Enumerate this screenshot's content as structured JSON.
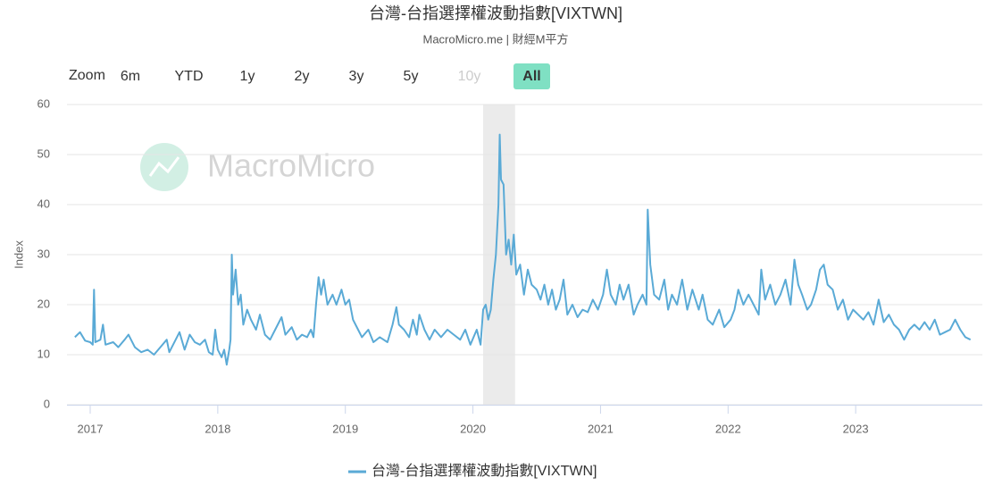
{
  "chart_data": {
    "type": "line",
    "title": "台灣-台指選擇權波動指數[VIXTWN]",
    "subtitle": "MacroMicro.me | 財經M平方",
    "y_label": "Index",
    "watermark": "MacroMicro",
    "range_selector": {
      "label": "Zoom",
      "buttons": [
        "6m",
        "YTD",
        "1y",
        "2y",
        "3y",
        "5y",
        "10y",
        "All"
      ],
      "selected": 7,
      "disabled": 6
    },
    "xlim": [
      2016.818,
      2023.993
    ],
    "xticks": [
      2017,
      2018,
      2019,
      2020,
      2021,
      2022,
      2023
    ],
    "ylim": [
      0,
      60
    ],
    "yticks": [
      0,
      10,
      20,
      30,
      40,
      50,
      60
    ],
    "grid": true,
    "highlight_band": [
      2020.08,
      2020.33
    ],
    "x": [
      2016.88,
      2016.92,
      2016.96,
      2017.0,
      2017.02,
      2017.03,
      2017.04,
      2017.08,
      2017.1,
      2017.12,
      2017.18,
      2017.22,
      2017.27,
      2017.3,
      2017.35,
      2017.4,
      2017.45,
      2017.5,
      2017.55,
      2017.6,
      2017.62,
      2017.7,
      2017.74,
      2017.78,
      2017.82,
      2017.86,
      2017.9,
      2017.93,
      2017.96,
      2017.98,
      2018.0,
      2018.03,
      2018.05,
      2018.07,
      2018.09,
      2018.1,
      2018.11,
      2018.12,
      2018.14,
      2018.16,
      2018.18,
      2018.2,
      2018.23,
      2018.26,
      2018.3,
      2018.33,
      2018.37,
      2018.41,
      2018.45,
      2018.5,
      2018.53,
      2018.58,
      2018.62,
      2018.66,
      2018.7,
      2018.73,
      2018.75,
      2018.77,
      2018.79,
      2018.81,
      2018.83,
      2018.86,
      2018.9,
      2018.93,
      2018.97,
      2019.0,
      2019.03,
      2019.06,
      2019.1,
      2019.13,
      2019.18,
      2019.22,
      2019.27,
      2019.33,
      2019.37,
      2019.4,
      2019.42,
      2019.46,
      2019.5,
      2019.53,
      2019.56,
      2019.58,
      2019.62,
      2019.66,
      2019.7,
      2019.75,
      2019.8,
      2019.85,
      2019.9,
      2019.94,
      2019.98,
      2020.03,
      2020.06,
      2020.08,
      2020.1,
      2020.12,
      2020.14,
      2020.16,
      2020.18,
      2020.2,
      2020.21,
      2020.22,
      2020.24,
      2020.26,
      2020.28,
      2020.3,
      2020.32,
      2020.34,
      2020.37,
      2020.4,
      2020.43,
      2020.46,
      2020.5,
      2020.53,
      2020.56,
      2020.59,
      2020.62,
      2020.65,
      2020.68,
      2020.71,
      2020.74,
      2020.78,
      2020.82,
      2020.86,
      2020.9,
      2020.94,
      2020.98,
      2021.02,
      2021.05,
      2021.08,
      2021.12,
      2021.15,
      2021.18,
      2021.22,
      2021.26,
      2021.29,
      2021.33,
      2021.36,
      2021.37,
      2021.39,
      2021.42,
      2021.46,
      2021.5,
      2021.53,
      2021.56,
      2021.6,
      2021.64,
      2021.68,
      2021.72,
      2021.77,
      2021.8,
      2021.84,
      2021.88,
      2021.93,
      2021.97,
      2022.02,
      2022.05,
      2022.08,
      2022.12,
      2022.16,
      2022.2,
      2022.24,
      2022.26,
      2022.29,
      2022.33,
      2022.37,
      2022.41,
      2022.45,
      2022.49,
      2022.52,
      2022.55,
      2022.58,
      2022.62,
      2022.65,
      2022.69,
      2022.72,
      2022.75,
      2022.78,
      2022.82,
      2022.86,
      2022.9,
      2022.94,
      2022.98,
      2023.02,
      2023.06,
      2023.1,
      2023.14,
      2023.18,
      2023.22,
      2023.26,
      2023.3,
      2023.34,
      2023.38,
      2023.42,
      2023.46,
      2023.5,
      2023.54,
      2023.58,
      2023.62,
      2023.66,
      2023.7,
      2023.74,
      2023.78,
      2023.82,
      2023.86,
      2023.9
    ],
    "series": [
      {
        "name": "台灣-台指選擇權波動指數[VIXTWN]",
        "color": "#5aaad6",
        "values": [
          13.5,
          14.5,
          12.8,
          12.5,
          12,
          23,
          12.5,
          13,
          16,
          12,
          12.5,
          11.5,
          13,
          14,
          11.5,
          10.5,
          11,
          10,
          11.5,
          13,
          10.5,
          14.5,
          11,
          14,
          12.5,
          12,
          13,
          10.5,
          10,
          15,
          11,
          9.5,
          11,
          8,
          11,
          13,
          30,
          22,
          27,
          20,
          22,
          16,
          19,
          17,
          15,
          18,
          14,
          13,
          15,
          17.5,
          14,
          15.5,
          13,
          14,
          13.5,
          15,
          13.5,
          20,
          25.5,
          22,
          25,
          20,
          22,
          20,
          23,
          20,
          21,
          17,
          15,
          13.5,
          15,
          12.5,
          13.5,
          12.5,
          16,
          19.5,
          16,
          15,
          13.5,
          17,
          14,
          18,
          15,
          13,
          15,
          13.5,
          15,
          14,
          13,
          15,
          12,
          15,
          12,
          19,
          20,
          17,
          19,
          25,
          30,
          40,
          54,
          45,
          44,
          30,
          33,
          28,
          34,
          26,
          28,
          22,
          27,
          24,
          23,
          21,
          24,
          20,
          23,
          19,
          21,
          25,
          18,
          20,
          17.5,
          19,
          18.5,
          21,
          19,
          22,
          27,
          22,
          20,
          24,
          21,
          24,
          18,
          20,
          22,
          20,
          39,
          28,
          22,
          21,
          25,
          19,
          22,
          20,
          25,
          19,
          23,
          19,
          22,
          17,
          16,
          19,
          15.5,
          17,
          19,
          23,
          20,
          22,
          20,
          18,
          27,
          21,
          24,
          20,
          22,
          25,
          20,
          29,
          24,
          22,
          19,
          20,
          23,
          27,
          28,
          24,
          23,
          19,
          21,
          17,
          19,
          18,
          17,
          18.5,
          16,
          21,
          16.5,
          18,
          16,
          15,
          13,
          15,
          16,
          15,
          16.5,
          15,
          17,
          14,
          14.5,
          15,
          17,
          15,
          13.5,
          13
        ]
      }
    ]
  }
}
